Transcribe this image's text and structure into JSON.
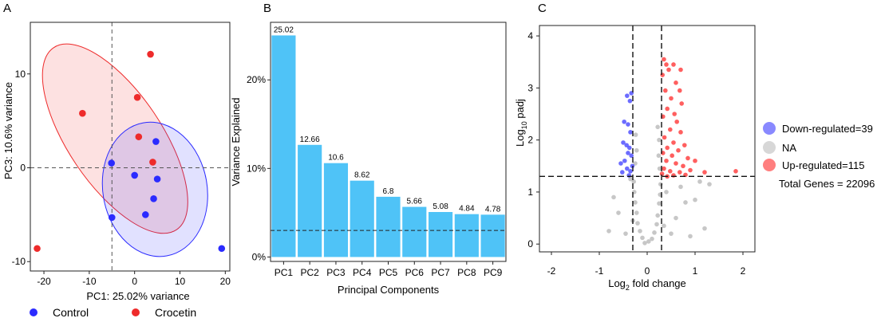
{
  "colors": {
    "control": "#2b2bff",
    "crocetin": "#ee2b2b",
    "bar": "#4fc3f7",
    "grey_point": "#bdbdbd",
    "down": "#3b3bff",
    "up": "#ff2a2a"
  },
  "panels": {
    "a": "A",
    "b": "B",
    "c": "C"
  },
  "chart_data": [
    {
      "type": "scatter",
      "panel": "A",
      "xlabel": "PC1: 25.02% variance",
      "ylabel": "PC3: 10.6% variance",
      "xlim": [
        -23,
        21
      ],
      "ylim": [
        -11,
        15.5
      ],
      "xticks": [
        -20,
        -10,
        0,
        10,
        20
      ],
      "yticks": [
        -10,
        0,
        10
      ],
      "reference_lines": {
        "x": -5,
        "y": 0
      },
      "series": [
        {
          "name": "Control",
          "points": [
            [
              4.7,
              2.8
            ],
            [
              0,
              -0.8
            ],
            [
              5,
              -1.2
            ],
            [
              4.2,
              -3.3
            ],
            [
              2.4,
              -5
            ],
            [
              -5,
              -5.3
            ],
            [
              19.2,
              -8.6
            ],
            [
              -5.1,
              0.5
            ]
          ]
        },
        {
          "name": "Crocetin",
          "points": [
            [
              3.5,
              12.1
            ],
            [
              0.6,
              7.5
            ],
            [
              -11.5,
              5.8
            ],
            [
              0.9,
              3.3
            ],
            [
              4,
              0.6
            ],
            [
              -21.5,
              -8.6
            ]
          ]
        }
      ],
      "ellipses": [
        {
          "series": "Crocetin",
          "center": [
            -4.3,
            3.1
          ],
          "rx_data": 10.3,
          "ry_data": 11.7,
          "angle_deg": -34
        },
        {
          "series": "Control",
          "center": [
            4.5,
            -2.3
          ],
          "rx_data": 11.5,
          "ry_data": 7.2,
          "angle_deg": -10
        }
      ],
      "legend": {
        "position": "bottom",
        "entries": [
          "Control",
          "Crocetin"
        ]
      }
    },
    {
      "type": "bar",
      "panel": "B",
      "categories": [
        "PC1",
        "PC2",
        "PC3",
        "PC4",
        "PC5",
        "PC6",
        "PC7",
        "PC8",
        "PC9"
      ],
      "values": [
        25.02,
        12.66,
        10.6,
        8.62,
        6.8,
        5.66,
        5.08,
        4.84,
        4.78
      ],
      "value_labels": [
        "25.02",
        "12.66",
        "10.6",
        "8.62",
        "6.8",
        "5.66",
        "5.08",
        "4.84",
        "4.78"
      ],
      "xlabel": "Principal Components",
      "ylabel": "Variance Explained",
      "ylim": [
        -0.5,
        26.5
      ],
      "yticks": [
        0,
        10,
        20
      ],
      "ytick_labels": [
        "0%",
        "10%",
        "20%"
      ],
      "reference_line_y": 3
    },
    {
      "type": "scatter",
      "panel": "C",
      "xlabel_parts": [
        "Log",
        "2",
        " fold change"
      ],
      "ylabel_parts": [
        "Log",
        "10",
        " padj"
      ],
      "xlim": [
        -2.25,
        2.25
      ],
      "ylim": [
        -0.15,
        4.2
      ],
      "xticks": [
        -2,
        -1,
        0,
        1,
        2
      ],
      "yticks": [
        0,
        1,
        2,
        3,
        4
      ],
      "thresholds": {
        "x": [
          -0.3,
          0.3
        ],
        "y": 1.3
      },
      "series": [
        {
          "name": "Down-regulated",
          "points": [
            [
              -0.42,
              2.85
            ],
            [
              -0.36,
              2.75
            ],
            [
              -0.33,
              2.9
            ],
            [
              -0.48,
              2.35
            ],
            [
              -0.4,
              2.3
            ],
            [
              -0.35,
              2.15
            ],
            [
              -0.5,
              1.95
            ],
            [
              -0.43,
              1.9
            ],
            [
              -0.37,
              1.85
            ],
            [
              -0.55,
              1.55
            ],
            [
              -0.47,
              1.6
            ],
            [
              -0.4,
              1.75
            ],
            [
              -0.33,
              1.7
            ],
            [
              -0.42,
              1.45
            ],
            [
              -0.35,
              1.4
            ],
            [
              -0.31,
              1.5
            ],
            [
              -0.52,
              1.38
            ],
            [
              -0.38,
              1.32
            ]
          ]
        },
        {
          "name": "NA",
          "points": [
            [
              -0.05,
              0.02
            ],
            [
              0.03,
              0.05
            ],
            [
              -0.1,
              0.12
            ],
            [
              0.1,
              0.1
            ],
            [
              -0.15,
              0.25
            ],
            [
              0.15,
              0.22
            ],
            [
              -0.2,
              0.4
            ],
            [
              0.2,
              0.38
            ],
            [
              -0.22,
              0.6
            ],
            [
              0.22,
              0.55
            ],
            [
              -0.25,
              0.8
            ],
            [
              0.25,
              0.78
            ],
            [
              -0.27,
              1.0
            ],
            [
              0.27,
              0.95
            ],
            [
              -0.28,
              1.2
            ],
            [
              0.28,
              1.15
            ],
            [
              -0.6,
              0.6
            ],
            [
              0.6,
              0.5
            ],
            [
              -0.45,
              0.2
            ],
            [
              0.5,
              0.2
            ],
            [
              0.8,
              0.8
            ],
            [
              1.0,
              0.85
            ],
            [
              1.2,
              0.3
            ],
            [
              1.1,
              1.2
            ],
            [
              -0.8,
              0.25
            ],
            [
              -0.7,
              0.9
            ],
            [
              0.4,
              1.0
            ],
            [
              -0.35,
              1.25
            ],
            [
              0.7,
              1.1
            ],
            [
              -0.25,
              1.55
            ],
            [
              -0.22,
              1.8
            ],
            [
              0.24,
              1.7
            ],
            [
              0.25,
              2.0
            ],
            [
              0.22,
              2.25
            ],
            [
              -0.24,
              2.1
            ],
            [
              0.26,
              1.45
            ],
            [
              0.35,
              0.35
            ],
            [
              -0.3,
              0.45
            ],
            [
              0.9,
              0.15
            ],
            [
              1.3,
              1.15
            ]
          ]
        },
        {
          "name": "Up-regulated",
          "points": [
            [
              0.35,
              3.55
            ],
            [
              0.4,
              3.45
            ],
            [
              0.45,
              3.35
            ],
            [
              0.55,
              3.45
            ],
            [
              0.7,
              3.35
            ],
            [
              0.32,
              3.25
            ],
            [
              0.6,
              3.1
            ],
            [
              0.68,
              2.95
            ],
            [
              0.38,
              2.95
            ],
            [
              0.5,
              2.8
            ],
            [
              0.72,
              2.7
            ],
            [
              0.42,
              2.6
            ],
            [
              0.57,
              2.5
            ],
            [
              0.33,
              2.45
            ],
            [
              0.62,
              2.35
            ],
            [
              0.48,
              2.2
            ],
            [
              0.7,
              2.15
            ],
            [
              0.36,
              2.05
            ],
            [
              0.55,
              1.95
            ],
            [
              0.78,
              1.9
            ],
            [
              0.42,
              1.85
            ],
            [
              0.65,
              1.8
            ],
            [
              0.33,
              1.75
            ],
            [
              0.52,
              1.7
            ],
            [
              0.85,
              1.65
            ],
            [
              0.4,
              1.6
            ],
            [
              0.6,
              1.55
            ],
            [
              0.75,
              1.5
            ],
            [
              0.35,
              1.45
            ],
            [
              0.48,
              1.4
            ],
            [
              0.68,
              1.38
            ],
            [
              0.9,
              1.42
            ],
            [
              1.0,
              1.6
            ],
            [
              1.2,
              1.38
            ],
            [
              1.85,
              1.4
            ],
            [
              0.31,
              1.35
            ],
            [
              0.55,
              1.32
            ],
            [
              0.42,
              1.3
            ],
            [
              0.8,
              1.33
            ]
          ]
        }
      ],
      "legend": {
        "position": "right",
        "entries": [
          "Down-regulated=39",
          "NA",
          "Up-regulated=115"
        ],
        "note": "Total Genes = 22096"
      }
    }
  ]
}
